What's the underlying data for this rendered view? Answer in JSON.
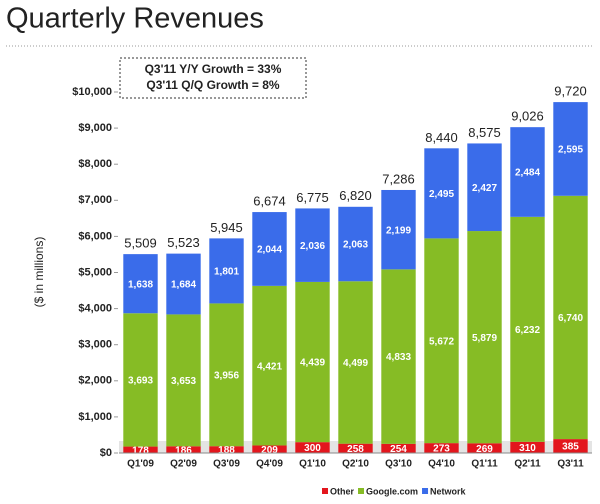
{
  "chart_data": {
    "type": "stacked-bar",
    "title": "Quarterly Revenues",
    "annotations": [
      "Q3'11 Y/Y Growth = 33%",
      "Q3'11 Q/Q Growth = 8%"
    ],
    "y_label": "($ in millions)",
    "categories": [
      "Q1'09",
      "Q2'09",
      "Q3'09",
      "Q4'09",
      "Q1'10",
      "Q2'10",
      "Q3'10",
      "Q4'10",
      "Q1'11",
      "Q2'11",
      "Q3'11"
    ],
    "series": [
      {
        "name": "Other",
        "color": "#e3161d",
        "values": [
          178,
          186,
          188,
          209,
          300,
          258,
          254,
          273,
          269,
          310,
          385
        ]
      },
      {
        "name": "Google.com",
        "color": "#86bc25",
        "values": [
          3693,
          3653,
          3956,
          4421,
          4439,
          4499,
          4833,
          5672,
          5879,
          6232,
          6740
        ],
        "value_labels": [
          "3,693",
          "3,653",
          "3,956",
          "4,421",
          "4,439",
          "4,499",
          "4,833",
          "5,672",
          "5,879",
          "6,232",
          "6,740"
        ]
      },
      {
        "name": "Network",
        "color": "#3a6cea",
        "values": [
          1638,
          1684,
          1801,
          2044,
          2036,
          2063,
          2199,
          2495,
          2427,
          2484,
          2595
        ],
        "value_labels": [
          "1,638",
          "1,684",
          "1,801",
          "2,044",
          "2,036",
          "2,063",
          "2,199",
          "2,495",
          "2,427",
          "2,484",
          "2,595"
        ]
      }
    ],
    "totals": {
      "values": [
        5509,
        5523,
        5945,
        6674,
        6775,
        6820,
        7286,
        8440,
        8575,
        9026,
        9720
      ],
      "value_labels": [
        "5,509",
        "5,523",
        "5,945",
        "6,674",
        "6,775",
        "6,820",
        "7,286",
        "8,440",
        "8,575",
        "9,026",
        "9,720"
      ]
    },
    "ylim": [
      0,
      10000
    ],
    "yticks": [
      {
        "value": 0,
        "label": "$0"
      },
      {
        "value": 1000,
        "label": "$1,000"
      },
      {
        "value": 2000,
        "label": "$2,000"
      },
      {
        "value": 3000,
        "label": "$3,000"
      },
      {
        "value": 4000,
        "label": "$4,000"
      },
      {
        "value": 5000,
        "label": "$5,000"
      },
      {
        "value": 6000,
        "label": "$6,000"
      },
      {
        "value": 7000,
        "label": "$7,000"
      },
      {
        "value": 8000,
        "label": "$8,000"
      },
      {
        "value": 9000,
        "label": "$9,000"
      },
      {
        "value": 10000,
        "label": "$10,000"
      }
    ]
  }
}
